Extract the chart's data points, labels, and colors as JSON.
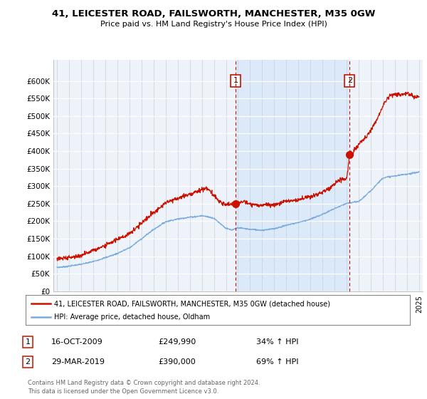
{
  "title": "41, LEICESTER ROAD, FAILSWORTH, MANCHESTER, M35 0GW",
  "subtitle": "Price paid vs. HM Land Registry's House Price Index (HPI)",
  "ylabel_ticks": [
    "£0",
    "£50K",
    "£100K",
    "£150K",
    "£200K",
    "£250K",
    "£300K",
    "£350K",
    "£400K",
    "£450K",
    "£500K",
    "£550K",
    "£600K"
  ],
  "ytick_values": [
    0,
    50000,
    100000,
    150000,
    200000,
    250000,
    300000,
    350000,
    400000,
    450000,
    500000,
    550000,
    600000
  ],
  "ylim": [
    0,
    660000
  ],
  "xlim_start": 1994.7,
  "xlim_end": 2025.3,
  "hpi_line_color": "#7AABE0",
  "price_line_color": "#CC1100",
  "vline_color": "#CC1100",
  "shade_color": "#D8E8F8",
  "marker1_x": 2009.8,
  "marker1_y": 249990,
  "marker2_x": 2019.25,
  "marker2_y": 390000,
  "marker1_label": "1",
  "marker2_label": "2",
  "legend_price_label": "41, LEICESTER ROAD, FAILSWORTH, MANCHESTER, M35 0GW (detached house)",
  "legend_hpi_label": "HPI: Average price, detached house, Oldham",
  "note1_label": "1",
  "note1_date": "16-OCT-2009",
  "note1_price": "£249,990",
  "note1_hpi": "34% ↑ HPI",
  "note2_label": "2",
  "note2_date": "29-MAR-2019",
  "note2_price": "£390,000",
  "note2_hpi": "69% ↑ HPI",
  "footer": "Contains HM Land Registry data © Crown copyright and database right 2024.\nThis data is licensed under the Open Government Licence v3.0.",
  "background_color": "#FFFFFF",
  "plot_bg_color": "#EEF3FA"
}
